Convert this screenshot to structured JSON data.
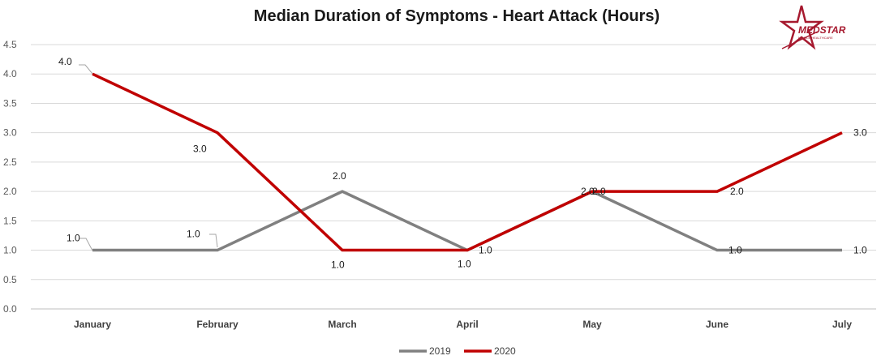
{
  "chart_data": {
    "type": "line",
    "title": "Median Duration of Symptoms - Heart Attack (Hours)",
    "xlabel": "",
    "ylabel": "",
    "categories": [
      "January",
      "February",
      "March",
      "April",
      "May",
      "June",
      "July"
    ],
    "ylim": [
      0,
      4.5
    ],
    "yticks": [
      "0.0",
      "0.5",
      "1.0",
      "1.5",
      "2.0",
      "2.5",
      "3.0",
      "3.5",
      "4.0",
      "4.5"
    ],
    "grid": true,
    "legend_position": "bottom",
    "series": [
      {
        "name": "2019",
        "color": "#808080",
        "values": [
          1.0,
          1.0,
          2.0,
          1.0,
          2.0,
          1.0,
          1.0
        ],
        "labels": [
          "1.0",
          "1.0",
          "2.0",
          "1.0",
          "2.0",
          "1.0",
          "1.0"
        ]
      },
      {
        "name": "2020",
        "color": "#C00000",
        "values": [
          4.0,
          3.0,
          1.0,
          1.0,
          2.0,
          2.0,
          3.0
        ],
        "labels": [
          "4.0",
          "3.0",
          "1.0",
          "1.0",
          "2.0",
          "2.0",
          "3.0"
        ]
      }
    ]
  },
  "logo": {
    "text": "MEDSTAR",
    "subtext": "MOBILE HEALTHCARE",
    "color": "#A6192E"
  }
}
